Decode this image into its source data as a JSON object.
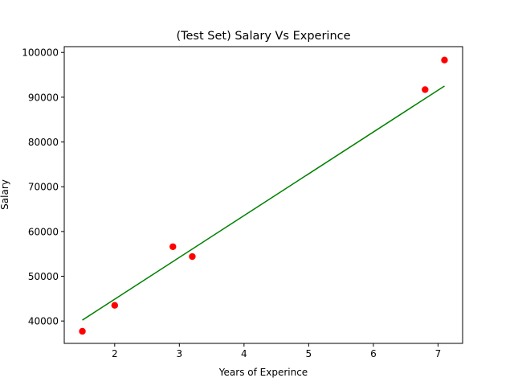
{
  "chart_data": {
    "type": "scatter",
    "title": "(Test Set) Salary Vs Experince",
    "xlabel": "Years of Experince",
    "ylabel": "Salary",
    "xlim": [
      1.22,
      7.38
    ],
    "ylim": [
      35000,
      101300
    ],
    "xticks": [
      2,
      3,
      4,
      5,
      6,
      7
    ],
    "yticks": [
      40000,
      50000,
      60000,
      70000,
      80000,
      90000,
      100000
    ],
    "grid": false,
    "legend": "none",
    "series": [
      {
        "type": "scatter",
        "color": "#ff0000",
        "x": [
          1.5,
          2.0,
          2.9,
          3.2,
          6.8,
          7.1
        ],
        "y": [
          37700,
          43500,
          56600,
          54400,
          91700,
          98300
        ]
      },
      {
        "type": "line",
        "color": "#008000",
        "x": [
          1.5,
          7.1
        ],
        "y": [
          40200,
          92500
        ]
      }
    ]
  }
}
